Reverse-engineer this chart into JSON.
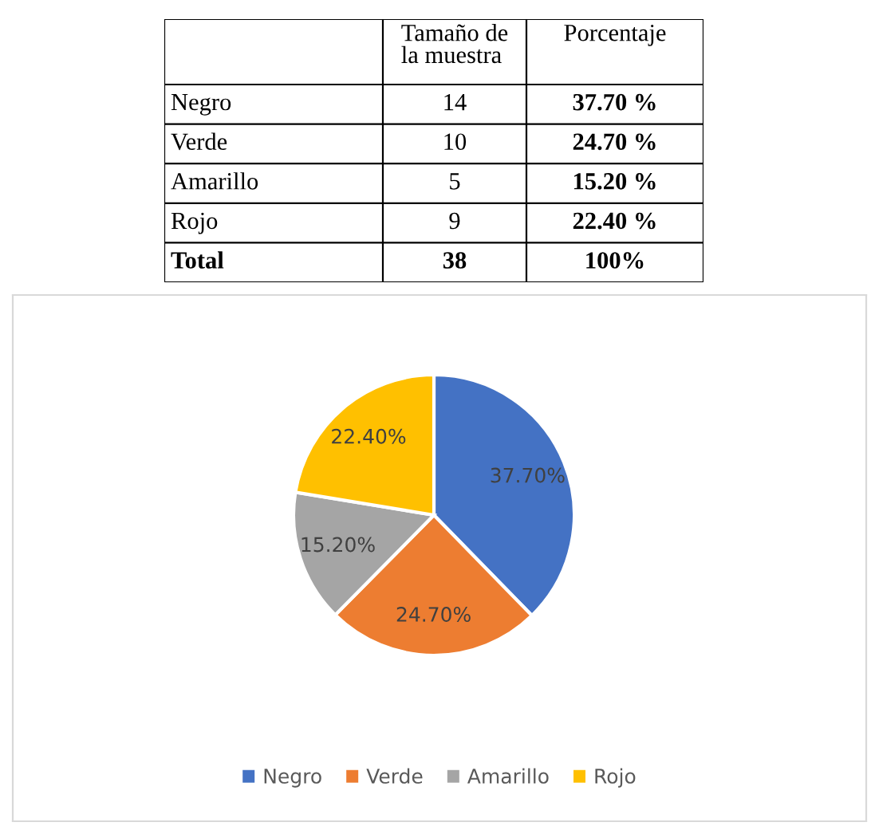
{
  "chart_data": [
    {
      "type": "other",
      "annotations": [
        "Tamaño de\nla muestra",
        "Porcentaje",
        "Negro",
        "14",
        "37.70 %",
        "Verde",
        "10",
        "24.70 %",
        "Amarillo",
        "5",
        "15.20 %",
        "Rojo",
        "9",
        "22.40 %",
        "Total",
        "38",
        "100%"
      ]
    },
    {
      "type": "pie",
      "categories": [
        "Negro",
        "Verde",
        "Amarillo",
        "Rojo"
      ],
      "values": [
        37.7,
        24.7,
        15.2,
        22.4
      ],
      "colors": [
        "#4472c4",
        "#ed7d31",
        "#a5a5a5",
        "#ffc000"
      ],
      "value_labels": [
        "37.70%",
        "24.70%",
        "15.20%",
        "22.40%"
      ],
      "legend": "bottom"
    }
  ]
}
